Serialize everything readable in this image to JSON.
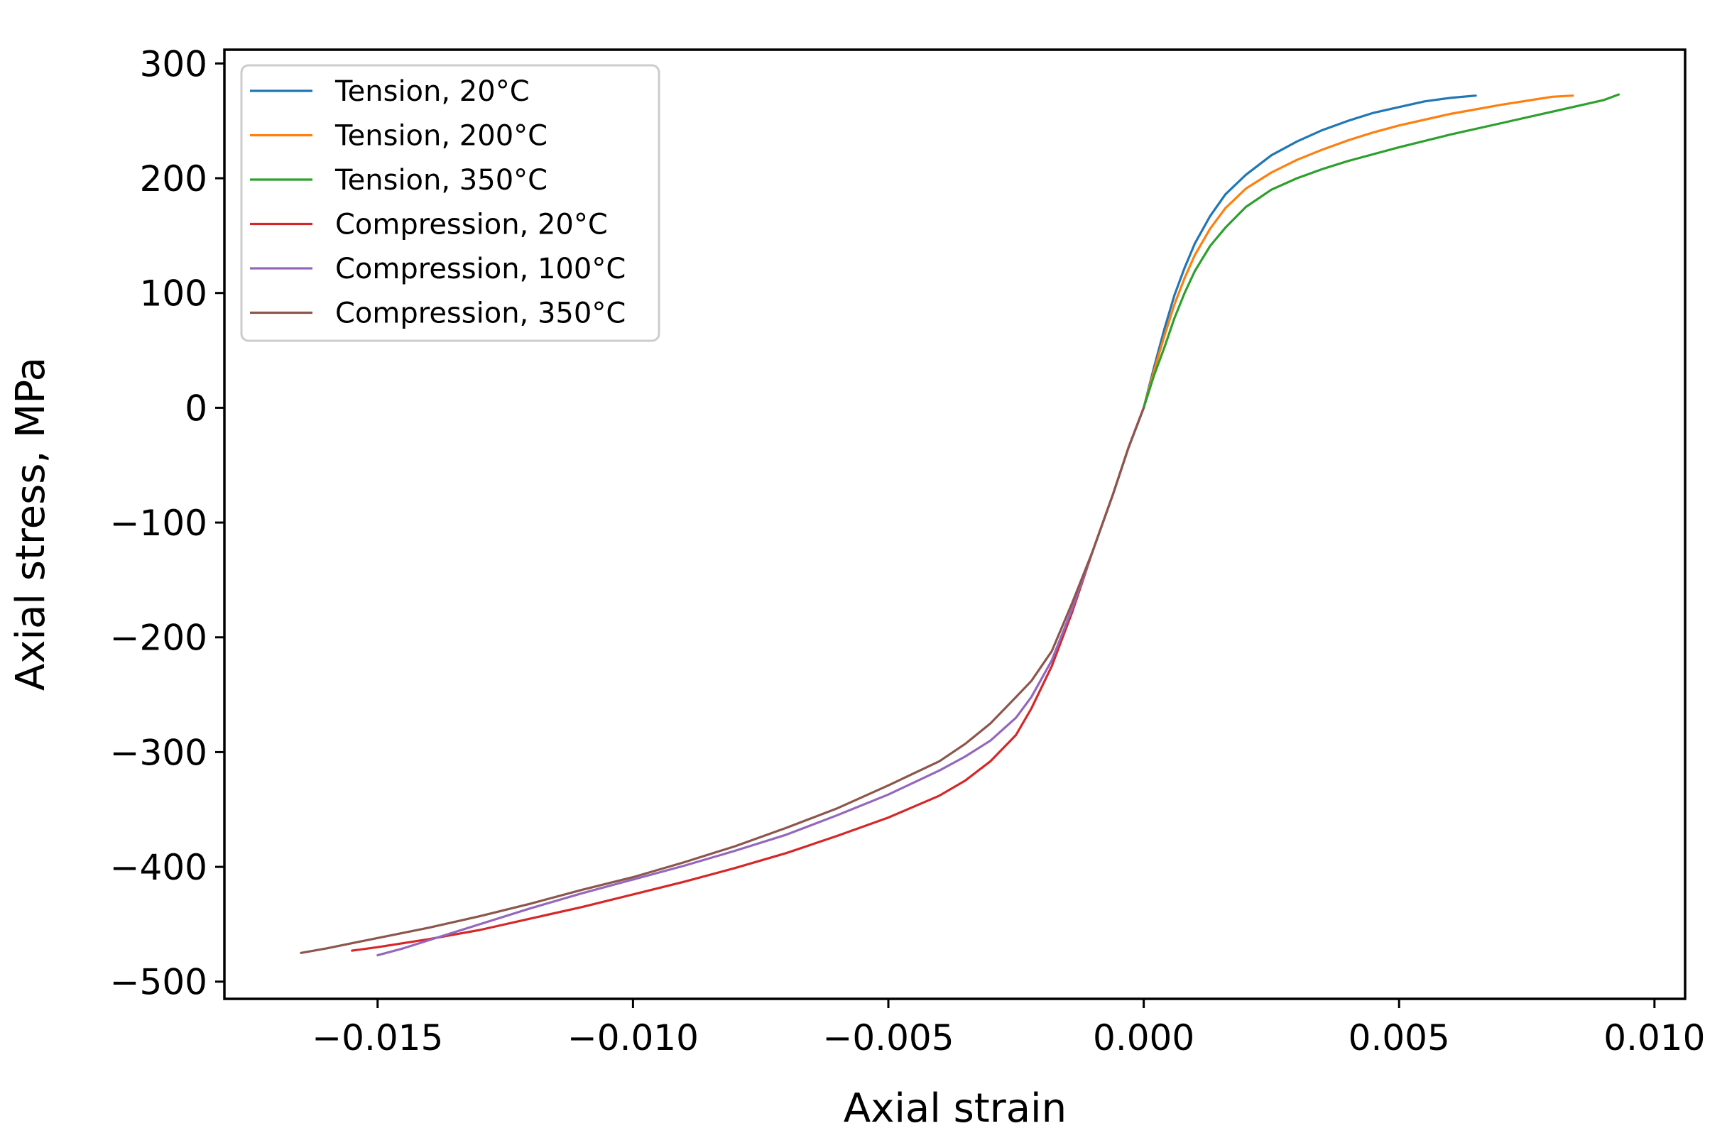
{
  "chart_data": {
    "type": "line",
    "title": "",
    "xlabel": "Axial strain",
    "ylabel": "Axial stress, MPa",
    "xlim": [
      -0.018,
      0.0106
    ],
    "ylim": [
      -515,
      312
    ],
    "grid": false,
    "legend_position": "top-left",
    "x_ticks": [
      -0.015,
      -0.01,
      -0.005,
      0.0,
      0.005,
      0.01
    ],
    "x_tick_labels": [
      "−0.015",
      "−0.010",
      "−0.005",
      "0.000",
      "0.005",
      "0.010"
    ],
    "y_ticks": [
      300,
      200,
      100,
      0,
      -100,
      -200,
      -300,
      -400,
      -500
    ],
    "y_tick_labels": [
      "300",
      "200",
      "100",
      "0",
      "−100",
      "−200",
      "−300",
      "−400",
      "−500"
    ],
    "series": [
      {
        "name": "Tension, 20°C",
        "color": "#1f77b4",
        "x": [
          0.0,
          0.0002,
          0.0004,
          0.0006,
          0.0008,
          0.001,
          0.0013,
          0.0016,
          0.002,
          0.0025,
          0.003,
          0.0035,
          0.004,
          0.0045,
          0.005,
          0.0055,
          0.006,
          0.0065
        ],
        "y": [
          0,
          35,
          68,
          98,
          122,
          143,
          167,
          186,
          203,
          220,
          232,
          242,
          250,
          257,
          262,
          267,
          270,
          272
        ]
      },
      {
        "name": "Tension, 200°C",
        "color": "#ff7f0e",
        "x": [
          0.0,
          0.0002,
          0.0004,
          0.0006,
          0.0008,
          0.001,
          0.0013,
          0.0016,
          0.002,
          0.0025,
          0.003,
          0.0035,
          0.004,
          0.0045,
          0.005,
          0.006,
          0.007,
          0.008,
          0.0084
        ],
        "y": [
          0,
          32,
          62,
          90,
          113,
          133,
          156,
          174,
          191,
          205,
          216,
          225,
          233,
          240,
          246,
          256,
          264,
          271,
          272
        ]
      },
      {
        "name": "Tension, 350°C",
        "color": "#2ca02c",
        "x": [
          0.0,
          0.0002,
          0.0004,
          0.0006,
          0.0008,
          0.001,
          0.0013,
          0.0016,
          0.002,
          0.0025,
          0.003,
          0.0035,
          0.004,
          0.005,
          0.006,
          0.007,
          0.008,
          0.009,
          0.0093
        ],
        "y": [
          0,
          28,
          52,
          78,
          100,
          119,
          141,
          157,
          175,
          190,
          200,
          208,
          215,
          227,
          238,
          248,
          258,
          268,
          273
        ]
      },
      {
        "name": "Compression, 20°C",
        "color": "#d62728",
        "x": [
          0.0,
          -0.0003,
          -0.0006,
          -0.001,
          -0.0014,
          -0.0018,
          -0.0022,
          -0.0025,
          -0.003,
          -0.0035,
          -0.004,
          -0.005,
          -0.006,
          -0.007,
          -0.008,
          -0.009,
          -0.01,
          -0.011,
          -0.012,
          -0.013,
          -0.014,
          -0.015,
          -0.0155
        ],
        "y": [
          0,
          -35,
          -75,
          -125,
          -178,
          -225,
          -262,
          -285,
          -308,
          -325,
          -338,
          -357,
          -373,
          -388,
          -401,
          -413,
          -424,
          -435,
          -445,
          -455,
          -463,
          -470,
          -473
        ]
      },
      {
        "name": "Compression, 100°C",
        "color": "#9467bd",
        "x": [
          0.0,
          -0.0003,
          -0.0006,
          -0.001,
          -0.0014,
          -0.0018,
          -0.0022,
          -0.0025,
          -0.003,
          -0.0035,
          -0.004,
          -0.005,
          -0.006,
          -0.007,
          -0.008,
          -0.009,
          -0.01,
          -0.011,
          -0.012,
          -0.013,
          -0.014,
          -0.0145,
          -0.015
        ],
        "y": [
          0,
          -35,
          -75,
          -125,
          -175,
          -220,
          -252,
          -270,
          -290,
          -304,
          -316,
          -337,
          -355,
          -372,
          -386,
          -399,
          -411,
          -423,
          -436,
          -450,
          -464,
          -471,
          -477
        ]
      },
      {
        "name": "Compression, 350°C",
        "color": "#8c564b",
        "x": [
          0.0,
          -0.0003,
          -0.0006,
          -0.001,
          -0.0014,
          -0.0018,
          -0.0022,
          -0.0025,
          -0.003,
          -0.0035,
          -0.004,
          -0.005,
          -0.006,
          -0.007,
          -0.008,
          -0.009,
          -0.01,
          -0.011,
          -0.012,
          -0.013,
          -0.014,
          -0.015,
          -0.016,
          -0.0165
        ],
        "y": [
          0,
          -35,
          -75,
          -125,
          -170,
          -212,
          -238,
          -252,
          -275,
          -293,
          -308,
          -329,
          -349,
          -366,
          -382,
          -396,
          -409,
          -420,
          -432,
          -443,
          -453,
          -462,
          -471,
          -475
        ]
      }
    ]
  }
}
